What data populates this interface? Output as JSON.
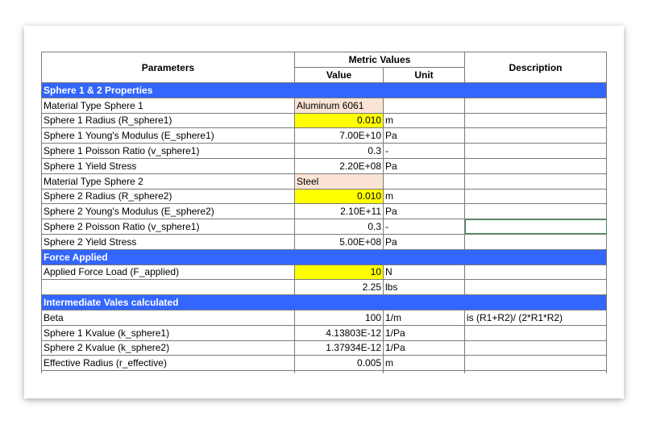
{
  "header": {
    "parameters": "Parameters",
    "metric_values": "Metric Values",
    "value": "Value",
    "unit": "Unit",
    "description": "Description"
  },
  "rows": [
    {
      "section": "Sphere 1 & 2 Properties"
    },
    {
      "param": "Material Type Sphere 1",
      "value": "Aluminum 6061",
      "unit": "",
      "desc": "",
      "style": "peach",
      "align": "left"
    },
    {
      "param": "Sphere 1 Radius (R_sphere1)",
      "value": "0.010",
      "unit": "m",
      "desc": "",
      "style": "yel"
    },
    {
      "param": "Sphere 1 Young's Modulus (E_sphere1)",
      "value": "7.00E+10",
      "unit": "Pa",
      "desc": ""
    },
    {
      "param": "Sphere 1 Poisson Ratio (v_sphere1)",
      "value": "0.3",
      "unit": "-",
      "desc": ""
    },
    {
      "param": "Sphere 1 Yield Stress",
      "value": "2.20E+08",
      "unit": "Pa",
      "desc": ""
    },
    {
      "param": "Material Type Sphere 2",
      "value": "Steel",
      "unit": "",
      "desc": "",
      "style": "peach",
      "align": "left"
    },
    {
      "param": "Sphere 2 Radius (R_sphere2)",
      "value": "0.010",
      "unit": "m",
      "desc": "",
      "style": "yel"
    },
    {
      "param": "Sphere 2 Young's Modulus (E_sphere2)",
      "value": "2.10E+11",
      "unit": "Pa",
      "desc": ""
    },
    {
      "param": "Sphere 2 Poisson Ratio (v_sphere1)",
      "value": "0.3",
      "unit": "-",
      "desc": "",
      "selected": true
    },
    {
      "param": "Sphere 2 Yield Stress",
      "value": "5.00E+08",
      "unit": "Pa",
      "desc": ""
    },
    {
      "section": "Force Applied"
    },
    {
      "param": "Applied Force Load (F_applied)",
      "value": "10",
      "unit": "N",
      "desc": "",
      "style": "yel"
    },
    {
      "param": "",
      "value": "2.25",
      "unit": "lbs",
      "desc": ""
    },
    {
      "section": "Intermediate Vales calculated"
    },
    {
      "param": "Beta",
      "value": "100",
      "unit": "1/m",
      "desc": "is (R1+R2)/ (2*R1*R2)"
    },
    {
      "param": "Sphere 1 Kvalue (k_sphere1)",
      "value": "4.13803E-12",
      "unit": "1/Pa",
      "desc": ""
    },
    {
      "param": "Sphere 2 Kvalue (k_sphere2)",
      "value": "1.37934E-12",
      "unit": "1/Pa",
      "desc": ""
    },
    {
      "param": "Effective Radius (r_effective)",
      "value": "0.005",
      "unit": "m",
      "desc": ""
    }
  ]
}
